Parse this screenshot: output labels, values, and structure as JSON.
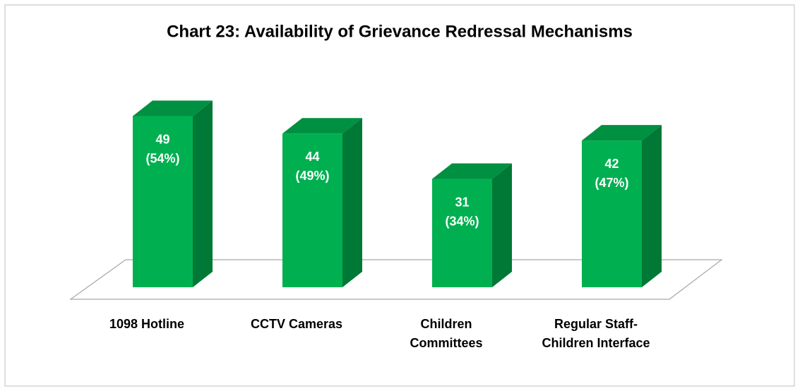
{
  "chart_data": {
    "type": "bar3d",
    "title": "Chart 23: Availability of Grievance Redressal Mechanisms",
    "categories": [
      "1098 Hotline",
      "CCTV Cameras",
      "Children Committees",
      "Regular Staff-Children Interface"
    ],
    "values": [
      49,
      44,
      31,
      42
    ],
    "value_labels": [
      "49 (54%)",
      "44 (49%)",
      "31 (34%)",
      "42 (47%)"
    ],
    "color": "#00b050"
  }
}
